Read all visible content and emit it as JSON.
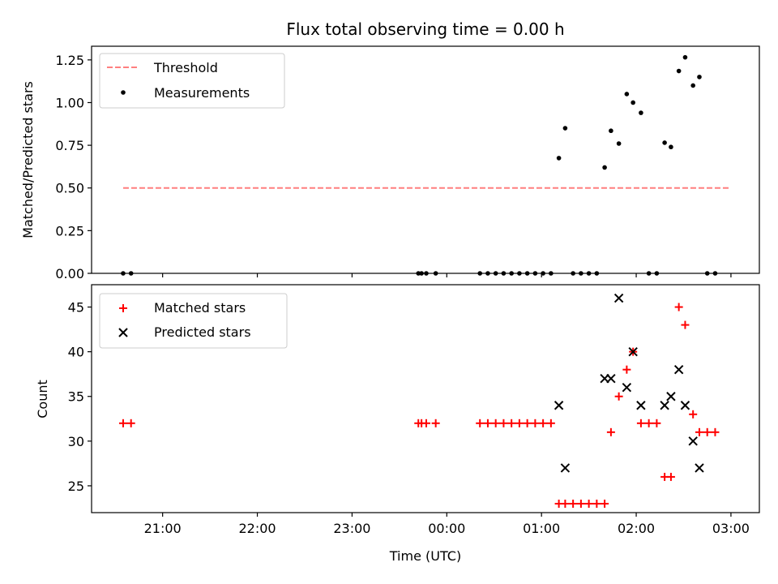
{
  "chart_data": [
    {
      "type": "scatter",
      "title": "Flux total observing time = 0.00 h",
      "xlabel": "",
      "ylabel": "Matched/Predicted stars",
      "ylim": [
        0,
        1.33
      ],
      "yticks": [
        0.0,
        0.25,
        0.5,
        0.75,
        1.0,
        1.25
      ],
      "ytick_labels": [
        "0.00",
        "0.25",
        "0.50",
        "0.75",
        "1.00",
        "1.25"
      ],
      "xticks": [
        "21:00",
        "22:00",
        "23:00",
        "00:00",
        "01:00",
        "02:00",
        "03:00"
      ],
      "legend_position": "top-left",
      "threshold": {
        "name": "Threshold",
        "color": "#ff7f7f",
        "x": [
          "20:35",
          "03:00"
        ],
        "y": 0.5
      },
      "series": [
        {
          "name": "Measurements",
          "color": "#000000",
          "marker": "dot",
          "points": [
            [
              "20:35",
              0.0
            ],
            [
              "20:40",
              0.0
            ],
            [
              "23:42",
              0.0
            ],
            [
              "23:44",
              0.0
            ],
            [
              "23:47",
              0.0
            ],
            [
              "23:53",
              0.0
            ],
            [
              "00:21",
              0.0
            ],
            [
              "00:26",
              0.0
            ],
            [
              "00:31",
              0.0
            ],
            [
              "00:36",
              0.0
            ],
            [
              "00:41",
              0.0
            ],
            [
              "00:46",
              0.0
            ],
            [
              "00:51",
              0.0
            ],
            [
              "00:56",
              0.0
            ],
            [
              "01:01",
              0.0
            ],
            [
              "01:06",
              0.0
            ],
            [
              "01:11",
              0.675
            ],
            [
              "01:15",
              0.85
            ],
            [
              "01:20",
              0.0
            ],
            [
              "01:25",
              0.0
            ],
            [
              "01:30",
              0.0
            ],
            [
              "01:35",
              0.0
            ],
            [
              "01:40",
              0.62
            ],
            [
              "01:44",
              0.835
            ],
            [
              "01:49",
              0.76
            ],
            [
              "01:54",
              1.05
            ],
            [
              "01:58",
              1.0
            ],
            [
              "02:03",
              0.94
            ],
            [
              "02:08",
              0.0
            ],
            [
              "02:13",
              0.0
            ],
            [
              "02:18",
              0.765
            ],
            [
              "02:22",
              0.74
            ],
            [
              "02:27",
              1.185
            ],
            [
              "02:31",
              1.265
            ],
            [
              "02:36",
              1.1
            ],
            [
              "02:40",
              1.15
            ],
            [
              "02:45",
              0.0
            ],
            [
              "02:50",
              0.0
            ]
          ]
        }
      ]
    },
    {
      "type": "scatter",
      "title": "",
      "xlabel": "Time (UTC)",
      "ylabel": "Count",
      "ylim": [
        22,
        47.5
      ],
      "yticks": [
        25,
        30,
        35,
        40,
        45
      ],
      "ytick_labels": [
        "25",
        "30",
        "35",
        "40",
        "45"
      ],
      "xticks": [
        "21:00",
        "22:00",
        "23:00",
        "00:00",
        "01:00",
        "02:00",
        "03:00"
      ],
      "legend_position": "top-left",
      "series": [
        {
          "name": "Matched stars",
          "color": "#ff0000",
          "marker": "plus",
          "points": [
            [
              "20:35",
              32
            ],
            [
              "20:40",
              32
            ],
            [
              "23:42",
              32
            ],
            [
              "23:44",
              32
            ],
            [
              "23:47",
              32
            ],
            [
              "23:53",
              32
            ],
            [
              "00:21",
              32
            ],
            [
              "00:26",
              32
            ],
            [
              "00:31",
              32
            ],
            [
              "00:36",
              32
            ],
            [
              "00:41",
              32
            ],
            [
              "00:46",
              32
            ],
            [
              "00:51",
              32
            ],
            [
              "00:56",
              32
            ],
            [
              "01:01",
              32
            ],
            [
              "01:06",
              32
            ],
            [
              "01:11",
              23
            ],
            [
              "01:15",
              23
            ],
            [
              "01:20",
              23
            ],
            [
              "01:25",
              23
            ],
            [
              "01:30",
              23
            ],
            [
              "01:35",
              23
            ],
            [
              "01:40",
              23
            ],
            [
              "01:44",
              31
            ],
            [
              "01:49",
              35
            ],
            [
              "01:54",
              38
            ],
            [
              "01:58",
              40
            ],
            [
              "02:03",
              32
            ],
            [
              "02:08",
              32
            ],
            [
              "02:13",
              32
            ],
            [
              "02:18",
              26
            ],
            [
              "02:22",
              26
            ],
            [
              "02:27",
              45
            ],
            [
              "02:31",
              43
            ],
            [
              "02:36",
              33
            ],
            [
              "02:40",
              31
            ],
            [
              "02:45",
              31
            ],
            [
              "02:50",
              31
            ]
          ]
        },
        {
          "name": "Predicted stars",
          "color": "#000000",
          "marker": "x",
          "points": [
            [
              "01:11",
              34
            ],
            [
              "01:15",
              27
            ],
            [
              "01:40",
              37
            ],
            [
              "01:44",
              37
            ],
            [
              "01:49",
              46
            ],
            [
              "01:54",
              36
            ],
            [
              "01:58",
              40
            ],
            [
              "02:03",
              34
            ],
            [
              "02:18",
              34
            ],
            [
              "02:22",
              35
            ],
            [
              "02:27",
              38
            ],
            [
              "02:31",
              34
            ],
            [
              "02:36",
              30
            ],
            [
              "02:40",
              27
            ]
          ]
        }
      ]
    }
  ]
}
